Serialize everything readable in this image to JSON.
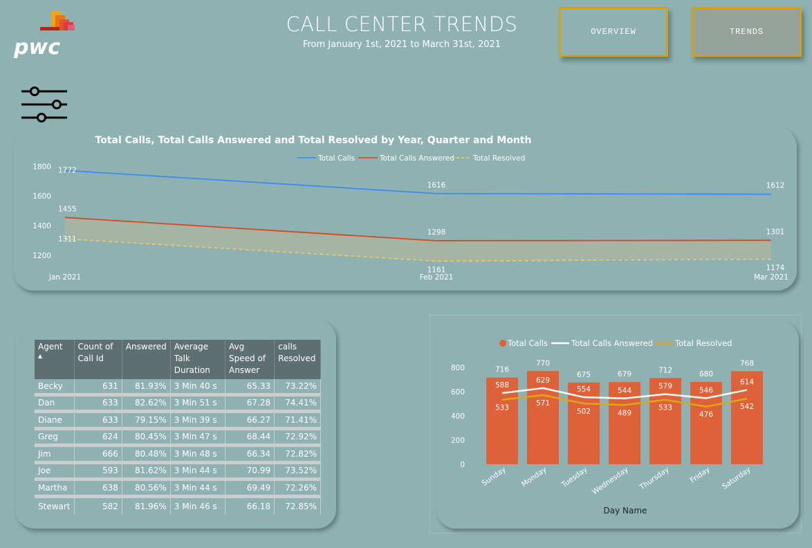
{
  "brand": {
    "logo_text": "pwc"
  },
  "header": {
    "title": "CALL CENTER TRENDS",
    "subtitle": "From January 1st, 2021 to March 31st, 2021"
  },
  "nav": {
    "overview_label": "OVERVIEW",
    "trends_label": "TRENDS"
  },
  "colors": {
    "background": "#8fb1b1",
    "total_calls": "#3d8bf0",
    "answered": "#d24a1c",
    "resolved": "#f0d060",
    "bar": "#de6239",
    "bar_answered": "#ffffff",
    "bar_resolved": "#e0a517",
    "nav_border": "#c9a51a"
  },
  "icons": {
    "filter": "sliders-icon",
    "sort": "sort-ascending-icon"
  },
  "chart_data": [
    {
      "type": "line",
      "title": "Total Calls, Total Calls Answered and Total Resolved by Year, Quarter and Month",
      "categories": [
        "Jan 2021",
        "Feb 2021",
        "Mar 2021"
      ],
      "series": [
        {
          "name": "Total Calls",
          "values": [
            1772,
            1616,
            1612
          ],
          "style": "solid",
          "color": "#3d8bf0"
        },
        {
          "name": "Total Calls Answered",
          "values": [
            1455,
            1298,
            1301
          ],
          "style": "solid",
          "color": "#d24a1c"
        },
        {
          "name": "Total Resolved",
          "values": [
            1311,
            1161,
            1174
          ],
          "style": "dashed",
          "color": "#f0d060"
        }
      ],
      "yticks": [
        1200,
        1400,
        1600,
        1800
      ],
      "ylim": [
        1130,
        1820
      ],
      "legend": "top-center",
      "grid": false
    },
    {
      "type": "bar",
      "title": "",
      "xlabel": "Day Name",
      "categories": [
        "Sunday",
        "Monday",
        "Tuesday",
        "Wednesday",
        "Thursday",
        "Friday",
        "Saturday"
      ],
      "series": [
        {
          "name": "Total Calls",
          "kind": "bar",
          "values": [
            716,
            770,
            675,
            679,
            712,
            680,
            768
          ],
          "color": "#de6239"
        },
        {
          "name": "Total Calls Answered",
          "kind": "line",
          "values": [
            588,
            629,
            554,
            544,
            579,
            546,
            614
          ],
          "color": "#ffffff"
        },
        {
          "name": "Total Resolved",
          "kind": "line",
          "values": [
            533,
            571,
            502,
            489,
            533,
            476,
            542
          ],
          "color": "#e0a517"
        }
      ],
      "yticks": [
        0,
        200,
        400,
        600,
        800
      ],
      "ylim": [
        0,
        800
      ],
      "legend": "top-center",
      "grid": false
    }
  ],
  "table": {
    "columns": [
      "Agent",
      "Count of Call Id",
      "Answered",
      "Average Talk Duration",
      "Avg Speed of Answer",
      "calls Resolved"
    ],
    "sort_arrow": "▲",
    "rows": [
      [
        "Becky",
        "631",
        "81.93%",
        "3 Min 40 s",
        "65.33",
        "73.22%"
      ],
      [
        "Dan",
        "633",
        "82.62%",
        "3 Min 51 s",
        "67.28",
        "74.41%"
      ],
      [
        "Diane",
        "633",
        "79.15%",
        "3 Min 39 s",
        "66.27",
        "71.41%"
      ],
      [
        "Greg",
        "624",
        "80.45%",
        "3 Min 47 s",
        "68.44",
        "72.92%"
      ],
      [
        "Jim",
        "666",
        "80.48%",
        "3 Min 48 s",
        "66.34",
        "72.82%"
      ],
      [
        "Joe",
        "593",
        "81.62%",
        "3 Min 44 s",
        "70.99",
        "73.52%"
      ],
      [
        "Martha",
        "638",
        "80.56%",
        "3 Min 44 s",
        "69.49",
        "72.26%"
      ],
      [
        "Stewart",
        "582",
        "81.96%",
        "3 Min 46 s",
        "66.18",
        "72.85%"
      ]
    ]
  }
}
